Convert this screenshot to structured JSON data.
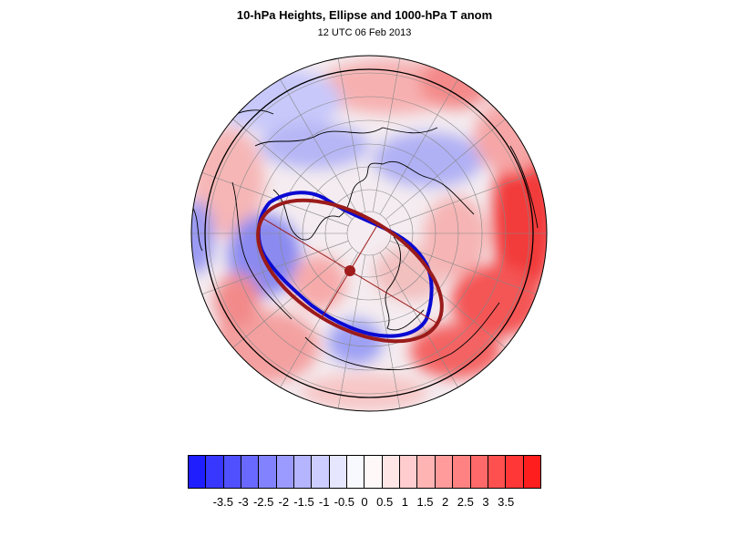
{
  "figure": {
    "title": "10-hPa Heights, Ellipse and 1000-hPa T anom",
    "subtitle": "12 UTC 06 Feb 2013"
  },
  "map": {
    "projection": "north polar stereographic",
    "contours": [
      "10-hPa height contour (blue)",
      "fitted vortex ellipse (dark red)"
    ],
    "ellipse_center_marker": "dark red dot",
    "colors": {
      "height_contour": "#0a0ad2",
      "ellipse": "#9b1b1b",
      "negative": "#1a1aff",
      "positive": "#ff2020"
    }
  },
  "colorbar": {
    "colors": [
      "#1e1eff",
      "#3737ff",
      "#5050ff",
      "#6969ff",
      "#8282ff",
      "#9b9bff",
      "#b4b4ff",
      "#cdcdff",
      "#e6e6ff",
      "#f8f8ff",
      "#fff8f8",
      "#ffe6e6",
      "#ffcdcd",
      "#ffb4b4",
      "#ff9b9b",
      "#ff8282",
      "#ff6969",
      "#ff5050",
      "#ff3737",
      "#ff1e1e"
    ],
    "labels": [
      "-3.5",
      "-3",
      "-2.5",
      "-2",
      "-1.5",
      "-1",
      "-0.5",
      "0",
      "0.5",
      "1",
      "1.5",
      "2",
      "2.5",
      "3",
      "3.5"
    ]
  }
}
